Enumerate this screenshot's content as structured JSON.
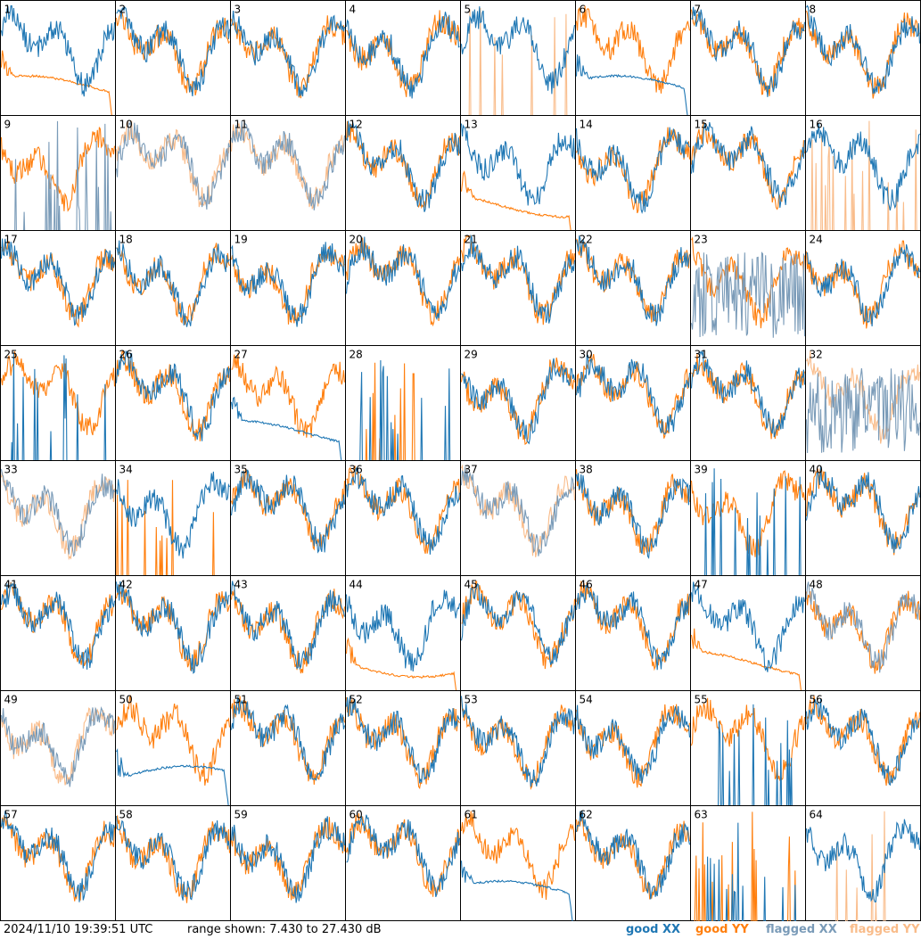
{
  "footer": {
    "timestamp": "2024/11/10 19:39:51 UTC",
    "range_text": "range shown: 7.430 to 27.430 dB"
  },
  "legend": {
    "good_xx": "good XX",
    "good_yy": "good YY",
    "flagged_xx": "flagged XX",
    "flagged_yy": "flagged YY"
  },
  "colors": {
    "good_xx": "#1f77b4",
    "good_yy": "#ff7f0e",
    "flagged_xx": "#7a9bb8",
    "flagged_yy": "#f9bc8a"
  },
  "chart_data": {
    "type": "line",
    "layout": "8x8 small multiples",
    "ylim_db": [
      7.43,
      27.43
    ],
    "series_styles": [
      "good XX",
      "good YY",
      "flagged XX",
      "flagged YY"
    ],
    "panels": [
      {
        "id": 1,
        "xx": "good",
        "yy": "good",
        "xx_shape": "normal",
        "yy_shape": "flat"
      },
      {
        "id": 2,
        "xx": "good",
        "yy": "good",
        "xx_shape": "normal",
        "yy_shape": "normal"
      },
      {
        "id": 3,
        "xx": "good",
        "yy": "good",
        "xx_shape": "normal",
        "yy_shape": "normal"
      },
      {
        "id": 4,
        "xx": "good",
        "yy": "good",
        "xx_shape": "normal",
        "yy_shape": "normal"
      },
      {
        "id": 5,
        "xx": "good",
        "yy": "flagged",
        "xx_shape": "normal",
        "yy_shape": "spikes"
      },
      {
        "id": 6,
        "xx": "good",
        "yy": "good",
        "xx_shape": "flat",
        "yy_shape": "normal"
      },
      {
        "id": 7,
        "xx": "good",
        "yy": "good",
        "xx_shape": "normal",
        "yy_shape": "normal"
      },
      {
        "id": 8,
        "xx": "good",
        "yy": "good",
        "xx_shape": "normal",
        "yy_shape": "normal"
      },
      {
        "id": 9,
        "xx": "flagged",
        "yy": "good",
        "xx_shape": "spikes",
        "yy_shape": "normal"
      },
      {
        "id": 10,
        "xx": "flagged",
        "yy": "flagged",
        "xx_shape": "normal",
        "yy_shape": "normal"
      },
      {
        "id": 11,
        "xx": "flagged",
        "yy": "flagged",
        "xx_shape": "normal",
        "yy_shape": "normal"
      },
      {
        "id": 12,
        "xx": "good",
        "yy": "good",
        "xx_shape": "normal",
        "yy_shape": "normal"
      },
      {
        "id": 13,
        "xx": "good",
        "yy": "good",
        "xx_shape": "normal",
        "yy_shape": "flat"
      },
      {
        "id": 14,
        "xx": "good",
        "yy": "good",
        "xx_shape": "normal",
        "yy_shape": "normal"
      },
      {
        "id": 15,
        "xx": "good",
        "yy": "good",
        "xx_shape": "normal",
        "yy_shape": "normal"
      },
      {
        "id": 16,
        "xx": "good",
        "yy": "flagged",
        "xx_shape": "normal",
        "yy_shape": "spikes"
      },
      {
        "id": 17,
        "xx": "good",
        "yy": "good",
        "xx_shape": "normal",
        "yy_shape": "normal"
      },
      {
        "id": 18,
        "xx": "good",
        "yy": "good",
        "xx_shape": "normal",
        "yy_shape": "normal"
      },
      {
        "id": 19,
        "xx": "good",
        "yy": "good",
        "xx_shape": "normal",
        "yy_shape": "normal"
      },
      {
        "id": 20,
        "xx": "good",
        "yy": "good",
        "xx_shape": "normal",
        "yy_shape": "normal"
      },
      {
        "id": 21,
        "xx": "good",
        "yy": "good",
        "xx_shape": "normal",
        "yy_shape": "normal"
      },
      {
        "id": 22,
        "xx": "good",
        "yy": "good",
        "xx_shape": "normal",
        "yy_shape": "normal"
      },
      {
        "id": 23,
        "xx": "flagged",
        "yy": "good",
        "xx_shape": "noisy",
        "yy_shape": "normal"
      },
      {
        "id": 24,
        "xx": "good",
        "yy": "good",
        "xx_shape": "normal",
        "yy_shape": "normal"
      },
      {
        "id": 25,
        "xx": "good",
        "yy": "good",
        "xx_shape": "spikes",
        "yy_shape": "normal"
      },
      {
        "id": 26,
        "xx": "good",
        "yy": "good",
        "xx_shape": "normal",
        "yy_shape": "normal"
      },
      {
        "id": 27,
        "xx": "good",
        "yy": "good",
        "xx_shape": "flat",
        "yy_shape": "normal"
      },
      {
        "id": 28,
        "xx": "good",
        "yy": "good",
        "xx_shape": "spikes",
        "yy_shape": "spikes"
      },
      {
        "id": 29,
        "xx": "good",
        "yy": "good",
        "xx_shape": "normal",
        "yy_shape": "normal"
      },
      {
        "id": 30,
        "xx": "good",
        "yy": "good",
        "xx_shape": "normal",
        "yy_shape": "normal"
      },
      {
        "id": 31,
        "xx": "good",
        "yy": "good",
        "xx_shape": "normal",
        "yy_shape": "normal"
      },
      {
        "id": 32,
        "xx": "flagged",
        "yy": "flagged",
        "xx_shape": "noisy",
        "yy_shape": "normal"
      },
      {
        "id": 33,
        "xx": "flagged",
        "yy": "flagged",
        "xx_shape": "normal",
        "yy_shape": "normal"
      },
      {
        "id": 34,
        "xx": "good",
        "yy": "good",
        "xx_shape": "normal",
        "yy_shape": "spikes"
      },
      {
        "id": 35,
        "xx": "good",
        "yy": "good",
        "xx_shape": "normal",
        "yy_shape": "normal"
      },
      {
        "id": 36,
        "xx": "good",
        "yy": "good",
        "xx_shape": "normal",
        "yy_shape": "normal"
      },
      {
        "id": 37,
        "xx": "flagged",
        "yy": "flagged",
        "xx_shape": "normal",
        "yy_shape": "normal"
      },
      {
        "id": 38,
        "xx": "good",
        "yy": "good",
        "xx_shape": "normal",
        "yy_shape": "normal"
      },
      {
        "id": 39,
        "xx": "good",
        "yy": "good",
        "xx_shape": "spikes",
        "yy_shape": "normal"
      },
      {
        "id": 40,
        "xx": "good",
        "yy": "good",
        "xx_shape": "normal",
        "yy_shape": "normal"
      },
      {
        "id": 41,
        "xx": "good",
        "yy": "good",
        "xx_shape": "normal",
        "yy_shape": "normal"
      },
      {
        "id": 42,
        "xx": "good",
        "yy": "good",
        "xx_shape": "normal",
        "yy_shape": "normal"
      },
      {
        "id": 43,
        "xx": "good",
        "yy": "good",
        "xx_shape": "normal",
        "yy_shape": "normal"
      },
      {
        "id": 44,
        "xx": "good",
        "yy": "good",
        "xx_shape": "normal",
        "yy_shape": "flat"
      },
      {
        "id": 45,
        "xx": "good",
        "yy": "good",
        "xx_shape": "normal",
        "yy_shape": "normal"
      },
      {
        "id": 46,
        "xx": "good",
        "yy": "good",
        "xx_shape": "normal",
        "yy_shape": "normal"
      },
      {
        "id": 47,
        "xx": "good",
        "yy": "good",
        "xx_shape": "normal",
        "yy_shape": "flat"
      },
      {
        "id": 48,
        "xx": "flagged",
        "yy": "good",
        "xx_shape": "normal",
        "yy_shape": "normal"
      },
      {
        "id": 49,
        "xx": "flagged",
        "yy": "flagged",
        "xx_shape": "normal",
        "yy_shape": "normal"
      },
      {
        "id": 50,
        "xx": "good",
        "yy": "good",
        "xx_shape": "flat",
        "yy_shape": "normal"
      },
      {
        "id": 51,
        "xx": "good",
        "yy": "good",
        "xx_shape": "normal",
        "yy_shape": "normal"
      },
      {
        "id": 52,
        "xx": "good",
        "yy": "good",
        "xx_shape": "normal",
        "yy_shape": "normal"
      },
      {
        "id": 53,
        "xx": "good",
        "yy": "good",
        "xx_shape": "normal",
        "yy_shape": "normal"
      },
      {
        "id": 54,
        "xx": "good",
        "yy": "good",
        "xx_shape": "normal",
        "yy_shape": "normal"
      },
      {
        "id": 55,
        "xx": "good",
        "yy": "good",
        "xx_shape": "spikes",
        "yy_shape": "normal"
      },
      {
        "id": 56,
        "xx": "good",
        "yy": "good",
        "xx_shape": "normal",
        "yy_shape": "normal"
      },
      {
        "id": 57,
        "xx": "good",
        "yy": "good",
        "xx_shape": "normal",
        "yy_shape": "normal"
      },
      {
        "id": 58,
        "xx": "good",
        "yy": "good",
        "xx_shape": "normal",
        "yy_shape": "normal"
      },
      {
        "id": 59,
        "xx": "good",
        "yy": "good",
        "xx_shape": "normal",
        "yy_shape": "normal"
      },
      {
        "id": 60,
        "xx": "good",
        "yy": "good",
        "xx_shape": "normal",
        "yy_shape": "normal"
      },
      {
        "id": 61,
        "xx": "good",
        "yy": "good",
        "xx_shape": "flat",
        "yy_shape": "normal"
      },
      {
        "id": 62,
        "xx": "good",
        "yy": "good",
        "xx_shape": "normal",
        "yy_shape": "normal"
      },
      {
        "id": 63,
        "xx": "good",
        "yy": "good",
        "xx_shape": "spikes",
        "yy_shape": "spikes"
      },
      {
        "id": 64,
        "xx": "good",
        "yy": "flagged",
        "xx_shape": "normal",
        "yy_shape": "spikes"
      }
    ]
  }
}
